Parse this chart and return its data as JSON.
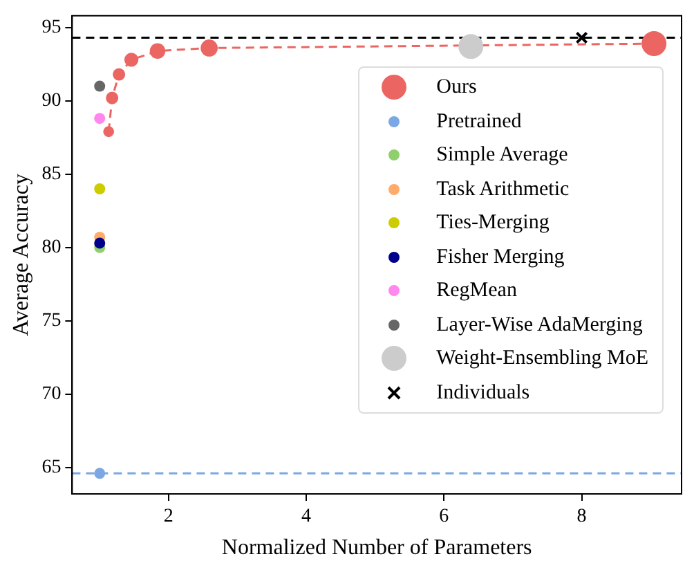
{
  "chart_data": {
    "type": "scatter",
    "xlabel": "Normalized Number of Parameters",
    "ylabel": "Average Accuracy",
    "xlim": [
      0.6,
      9.45
    ],
    "xticks": [
      2,
      4,
      6,
      8
    ],
    "ylim": [
      63.2,
      95.8
    ],
    "yticks": [
      65,
      70,
      75,
      80,
      85,
      90,
      95
    ],
    "grid": false,
    "legend": "top right",
    "marker": "circle",
    "series": [
      {
        "type": "line",
        "color": "#eb6662",
        "line_style": "dashed",
        "marker": "none",
        "x": [
          1.13,
          1.18,
          1.28,
          1.46,
          1.84,
          2.59,
          9.05
        ],
        "values": [
          87.9,
          90.2,
          91.8,
          92.8,
          93.4,
          93.6,
          93.9
        ]
      },
      {
        "name": "Ours",
        "type": "bubble",
        "color": "#eb6662",
        "x": [
          1.13,
          1.18,
          1.28,
          1.46,
          1.84,
          2.59,
          9.05
        ],
        "values": [
          87.9,
          90.2,
          91.8,
          92.8,
          93.4,
          93.6,
          93.9
        ],
        "sizes": [
          0.19,
          0.25,
          0.25,
          0.32,
          0.39,
          0.47,
          1
        ]
      },
      {
        "name": "Pretrained",
        "color": "#7ba7e4",
        "x": [
          1
        ],
        "values": [
          64.6
        ]
      },
      {
        "name": "Simple Average",
        "color": "#8fd06c",
        "x": [
          1
        ],
        "values": [
          80.0
        ]
      },
      {
        "name": "Task Arithmetic",
        "color": "#ffab6b",
        "x": [
          1
        ],
        "values": [
          80.7
        ]
      },
      {
        "name": "Ties-Merging",
        "color": "#cccc00",
        "x": [
          1
        ],
        "values": [
          84.0
        ]
      },
      {
        "name": "Fisher Merging",
        "color": "#00008b",
        "x": [
          1
        ],
        "values": [
          80.3
        ]
      },
      {
        "name": "RegMean",
        "color": "#ff88ee",
        "x": [
          1
        ],
        "values": [
          88.8
        ]
      },
      {
        "name": "Layer-Wise AdaMerging",
        "color": "#666666",
        "x": [
          1
        ],
        "values": [
          91.0
        ]
      },
      {
        "name": "Weight-Ensembling MoE",
        "type": "bubble",
        "color": "#cccccc",
        "x": [
          6.39
        ],
        "values": [
          93.7
        ],
        "sizes": [
          1
        ]
      },
      {
        "name": "Individuals",
        "color": "#000000",
        "marker": "cross",
        "x": [
          8
        ],
        "values": [
          94.3
        ]
      }
    ],
    "ref_lines": [
      {
        "axis": "y",
        "value": 94.3,
        "color": "#000000",
        "line_style": "dashed"
      },
      {
        "axis": "y",
        "value": 64.6,
        "color": "#7ba7e4",
        "line_style": "dashed"
      }
    ]
  }
}
